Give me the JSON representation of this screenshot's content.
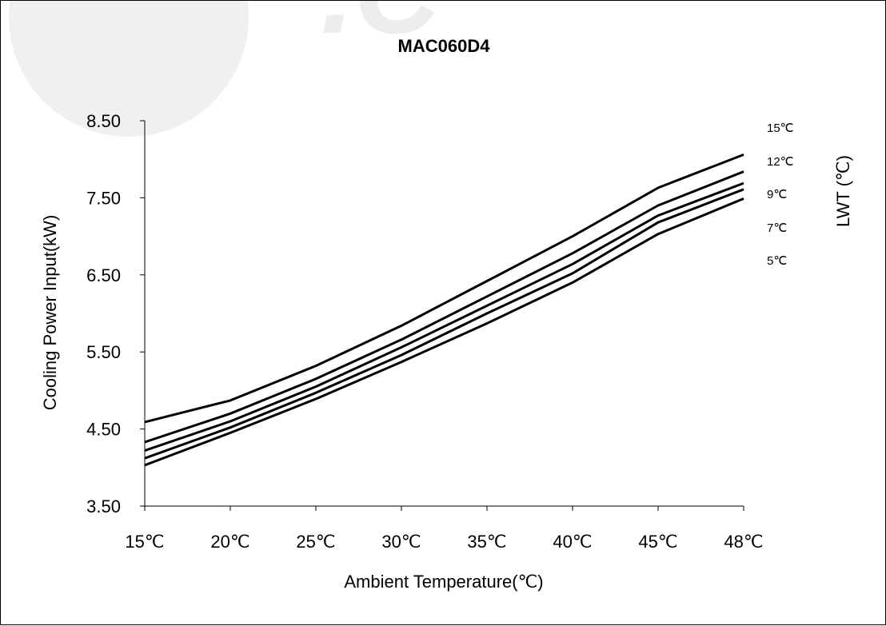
{
  "chart_data": {
    "type": "line",
    "title": "MAC060D4",
    "xlabel": "Ambient Temperature(℃)",
    "ylabel": "Cooling Power Input(kW)",
    "legend_title": "LWT (℃)",
    "categories": [
      "15℃",
      "20℃",
      "25℃",
      "30℃",
      "35℃",
      "40℃",
      "45℃",
      "48℃"
    ],
    "y_ticks": [
      "8.50",
      "7.50",
      "6.50",
      "5.50",
      "4.50",
      "3.50"
    ],
    "ylim": [
      3.5,
      8.5
    ],
    "grid": false,
    "line_color": "#000000",
    "series": [
      {
        "name": "15℃",
        "values": [
          4.59,
          4.87,
          5.32,
          5.84,
          6.42,
          7.0,
          7.63,
          8.06
        ]
      },
      {
        "name": "12℃",
        "values": [
          4.33,
          4.7,
          5.15,
          5.66,
          6.22,
          6.78,
          7.4,
          7.84
        ]
      },
      {
        "name": "9℃",
        "values": [
          4.22,
          4.6,
          5.05,
          5.56,
          6.1,
          6.64,
          7.27,
          7.69
        ]
      },
      {
        "name": "7℃",
        "values": [
          4.12,
          4.52,
          4.97,
          5.46,
          6.0,
          6.52,
          7.18,
          7.61
        ]
      },
      {
        "name": "5℃",
        "values": [
          4.03,
          4.45,
          4.89,
          5.37,
          5.87,
          6.4,
          7.03,
          7.49
        ]
      }
    ]
  }
}
